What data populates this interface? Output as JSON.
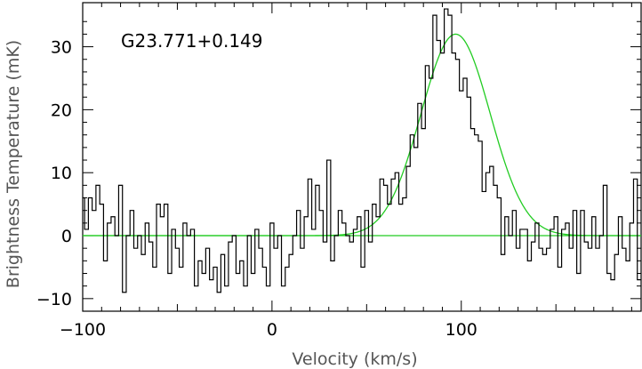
{
  "chart_data": {
    "type": "line",
    "xlabel": "Velocity (km/s)",
    "ylabel": "Brightness Temperature (mK)",
    "annotation": "G23.771+0.149",
    "xlim": [
      -100,
      195
    ],
    "ylim": [
      -12,
      37
    ],
    "xticks": [
      -100,
      0,
      100
    ],
    "xtick_labels": [
      "−100",
      "0",
      "100"
    ],
    "yticks": [
      -10,
      0,
      10,
      20,
      30
    ],
    "yticks_labels": [
      "−10",
      "0",
      "10",
      "20",
      "30"
    ],
    "grid": false,
    "colors": {
      "spectrum": "#000000",
      "fit": "#22cc22"
    },
    "series": [
      {
        "style": "step",
        "x": [
          -100,
          -98,
          -96,
          -94,
          -92,
          -90,
          -88,
          -86,
          -84,
          -82,
          -80,
          -78,
          -76,
          -74,
          -72,
          -70,
          -68,
          -66,
          -64,
          -62,
          -60,
          -58,
          -56,
          -54,
          -52,
          -50,
          -48,
          -46,
          -44,
          -42,
          -40,
          -38,
          -36,
          -34,
          -32,
          -30,
          -28,
          -26,
          -24,
          -22,
          -20,
          -18,
          -16,
          -14,
          -12,
          -10,
          -8,
          -6,
          -4,
          -2,
          0,
          2,
          4,
          6,
          8,
          10,
          12,
          14,
          16,
          18,
          20,
          22,
          24,
          26,
          28,
          30,
          32,
          34,
          36,
          38,
          40,
          42,
          44,
          46,
          48,
          50,
          52,
          54,
          56,
          58,
          60,
          62,
          64,
          66,
          68,
          70,
          72,
          74,
          76,
          78,
          80,
          82,
          84,
          86,
          88,
          90,
          92,
          94,
          96,
          98,
          100,
          102,
          104,
          106,
          108,
          110,
          112,
          114,
          116,
          118,
          120,
          122,
          124,
          126,
          128,
          130,
          132,
          134,
          136,
          138,
          140,
          142,
          144,
          146,
          148,
          150,
          152,
          154,
          156,
          158,
          160,
          162,
          164,
          166,
          168,
          170,
          172,
          174,
          176,
          178,
          180,
          182,
          184,
          186,
          188,
          190,
          192,
          194
        ],
        "y": [
          6,
          1,
          6,
          4,
          8,
          5,
          -4,
          2,
          3,
          0,
          8,
          -9,
          0,
          4,
          -2,
          0,
          -3,
          2,
          -1,
          -5,
          5,
          3,
          5,
          -6,
          1,
          -2,
          -5,
          2,
          0,
          1,
          -8,
          -4,
          -6,
          -2,
          -7,
          -5,
          -9,
          -3,
          -8,
          -1,
          0,
          -6,
          -4,
          -8,
          0,
          -6,
          1,
          -2,
          -5,
          -8,
          2,
          -2,
          0,
          -8,
          -5,
          -3,
          0,
          4,
          -2,
          3,
          9,
          1,
          8,
          4,
          -1,
          12,
          -4,
          0,
          4,
          2,
          0,
          -1,
          1,
          3,
          -5,
          4,
          -1,
          5,
          3,
          9,
          8,
          5,
          9,
          10,
          5,
          6,
          11,
          16,
          14,
          21,
          17,
          27,
          25,
          35,
          31,
          29,
          36,
          35,
          29,
          28,
          23,
          25,
          22,
          17,
          16,
          15,
          7,
          10,
          11,
          8,
          6,
          -3,
          3,
          0,
          4,
          -2,
          1,
          1,
          -4,
          -1,
          2,
          -2,
          -3,
          -2,
          1,
          3,
          -5,
          1,
          2,
          -2,
          4,
          -6,
          4,
          -1,
          -2,
          3,
          -2,
          0,
          8,
          -6,
          -7,
          -3,
          3,
          -2,
          -4,
          2,
          9,
          -7
        ]
      },
      {
        "style": "gaussian-fit",
        "amplitude": 32,
        "center": 97,
        "fwhm": 43
      }
    ]
  }
}
